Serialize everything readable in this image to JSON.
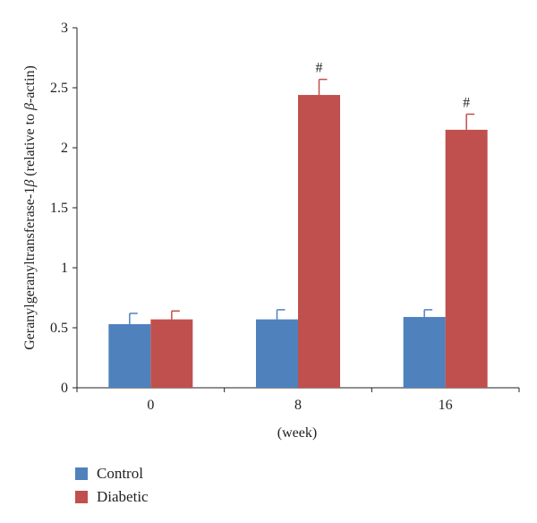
{
  "chart_data": {
    "type": "bar",
    "categories": [
      "0",
      "8",
      "16"
    ],
    "series": [
      {
        "name": "Control",
        "color": "#4F81BD",
        "values": [
          0.53,
          0.57,
          0.59
        ],
        "errors": [
          0.09,
          0.08,
          0.06
        ]
      },
      {
        "name": "Diabetic",
        "color": "#C0504D",
        "values": [
          0.57,
          2.44,
          2.15
        ],
        "errors": [
          0.07,
          0.13,
          0.13
        ],
        "annotations": [
          "",
          "#",
          "#"
        ]
      }
    ],
    "xlabel": "(week)",
    "ylabel_prefix": "Geranylgeranyltransferase-1",
    "ylabel_beta": "β",
    "ylabel_mid": " (relative to ",
    "ylabel_beta2": "β",
    "ylabel_suffix": "-actin)",
    "ylim": [
      0,
      3
    ],
    "yticks": [
      0,
      0.5,
      1,
      1.5,
      2,
      2.5,
      3
    ],
    "ytick_labels": [
      "0",
      "0.5",
      "1",
      "1.5",
      "2",
      "2.5",
      "3"
    ],
    "grid": false,
    "legend_position": "bottom-left"
  }
}
